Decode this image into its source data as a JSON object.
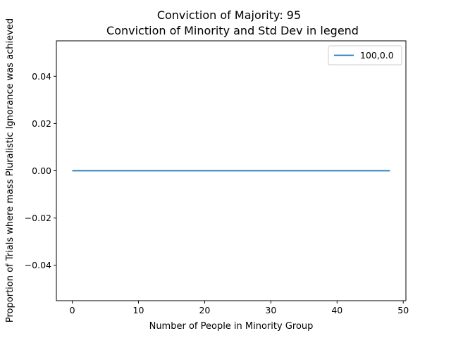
{
  "chart_data": {
    "type": "line",
    "title": "Conviction of Majority: 95",
    "subtitle": "Conviction of Minority and Std Dev in legend",
    "xlabel": "Number of People in Minority Group",
    "ylabel": "Proportion of Trials where mass Pluralistic Ignorance was achieved",
    "xlim": [
      -2.4,
      50.4
    ],
    "ylim": [
      -0.055,
      0.055
    ],
    "xticks": [
      0,
      10,
      20,
      30,
      40,
      50
    ],
    "yticks": [
      -0.04,
      -0.02,
      0.0,
      0.02,
      0.04
    ],
    "xtick_labels": [
      "0",
      "10",
      "20",
      "30",
      "40",
      "50"
    ],
    "ytick_labels": [
      "−0.04",
      "−0.02",
      "0.00",
      "0.02",
      "0.04"
    ],
    "grid": false,
    "legend": "upper-right",
    "series": [
      {
        "name": "100,0.0",
        "color": "#1f77b4",
        "x": [
          0,
          48
        ],
        "y": [
          0,
          0
        ]
      }
    ]
  }
}
